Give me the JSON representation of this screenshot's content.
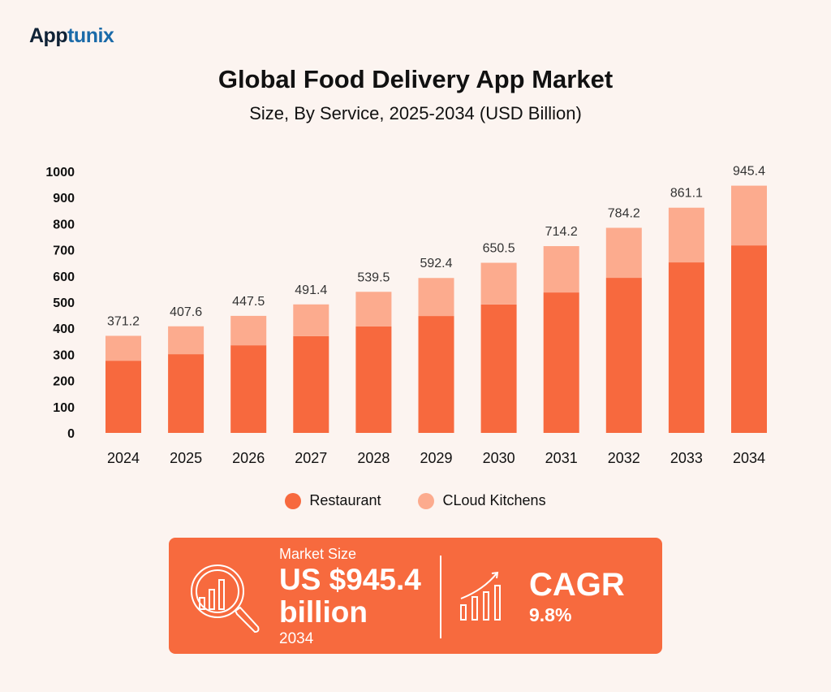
{
  "brand": {
    "logo_part1": "App",
    "logo_part2": "tunix"
  },
  "colors": {
    "restaurant": "#f7693e",
    "cloud_kitchens": "#fcab8e",
    "background": "#fcf4f0",
    "panel": "#f76a3e"
  },
  "chart_data": {
    "type": "bar",
    "stacked": true,
    "title": "Global Food Delivery App Market",
    "subtitle": "Size, By Service, 2025-2034 (USD Billion)",
    "categories": [
      "2024",
      "2025",
      "2026",
      "2027",
      "2028",
      "2029",
      "2030",
      "2031",
      "2032",
      "2033",
      "2034"
    ],
    "series": [
      {
        "name": "Restaurant",
        "values": [
          276,
          301,
          335,
          370,
          407,
          447,
          491,
          537,
          593,
          652,
          717
        ]
      },
      {
        "name": "CLoud Kitchens",
        "values": [
          95.2,
          106.6,
          112.5,
          121.4,
          132.5,
          145.4,
          159.5,
          177.2,
          191.2,
          209.1,
          228.4
        ]
      }
    ],
    "totals": [
      "371.2",
      "407.6",
      "447.5",
      "491.4",
      "539.5",
      "592.4",
      "650.5",
      "714.2",
      "784.2",
      "861.1",
      "945.4"
    ],
    "ylim": [
      0,
      1000
    ],
    "yticks": [
      0,
      100,
      200,
      300,
      400,
      500,
      600,
      700,
      800,
      900,
      1000
    ],
    "legend": "bottom",
    "grid": false
  },
  "summary": {
    "market_size_label": "Market Size",
    "market_size_value": "US $945.4",
    "market_size_unit": "billion",
    "market_size_year": "2034",
    "cagr_label": "CAGR",
    "cagr_value": "9.8%"
  }
}
